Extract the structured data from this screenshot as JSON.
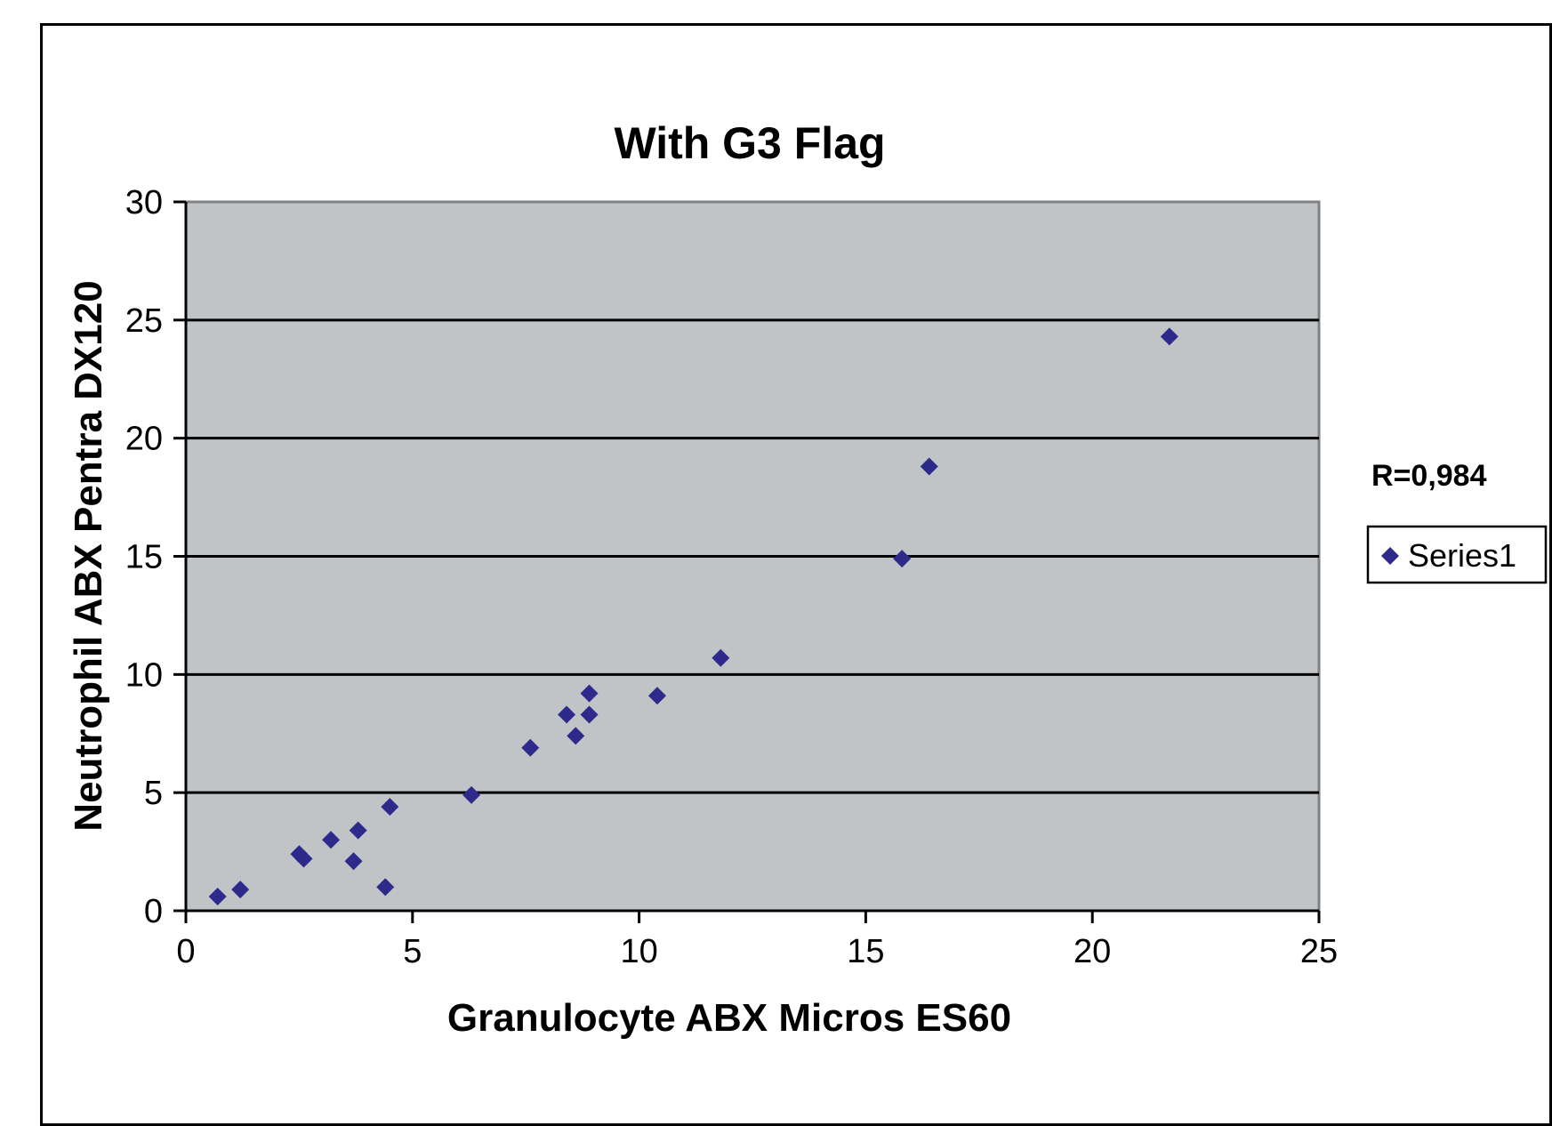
{
  "chart_data": {
    "type": "scatter",
    "title": "With G3 Flag",
    "xlabel": "Granulocyte ABX Micros ES60",
    "ylabel": "Neutrophil ABX Pentra DX120",
    "xlim": [
      0,
      25
    ],
    "ylim": [
      0,
      30
    ],
    "xticks": [
      "0",
      "5",
      "10",
      "15",
      "20",
      "25"
    ],
    "yticks": [
      "0",
      "5",
      "10",
      "15",
      "20",
      "25",
      "30"
    ],
    "grid": "horizontal",
    "legend_position": "right",
    "annotation": "R=0,984",
    "colors": {
      "plot_background": "#c0c4c7",
      "marker": "#2e2a8c",
      "gridline": "#000000"
    },
    "marker_icon": "diamond-icon",
    "series": [
      {
        "name": "Series1",
        "points": [
          {
            "x": 0.7,
            "y": 0.6
          },
          {
            "x": 1.2,
            "y": 0.9
          },
          {
            "x": 2.5,
            "y": 2.4
          },
          {
            "x": 2.6,
            "y": 2.2
          },
          {
            "x": 3.2,
            "y": 3.0
          },
          {
            "x": 3.7,
            "y": 2.1
          },
          {
            "x": 3.8,
            "y": 3.4
          },
          {
            "x": 4.4,
            "y": 1.0
          },
          {
            "x": 4.5,
            "y": 4.4
          },
          {
            "x": 6.3,
            "y": 4.9
          },
          {
            "x": 7.6,
            "y": 6.9
          },
          {
            "x": 8.4,
            "y": 8.3
          },
          {
            "x": 8.6,
            "y": 7.4
          },
          {
            "x": 8.9,
            "y": 9.2
          },
          {
            "x": 8.9,
            "y": 8.3
          },
          {
            "x": 10.4,
            "y": 9.1
          },
          {
            "x": 11.8,
            "y": 10.7
          },
          {
            "x": 15.8,
            "y": 14.9
          },
          {
            "x": 16.4,
            "y": 18.8
          },
          {
            "x": 21.7,
            "y": 24.3
          }
        ]
      }
    ]
  }
}
